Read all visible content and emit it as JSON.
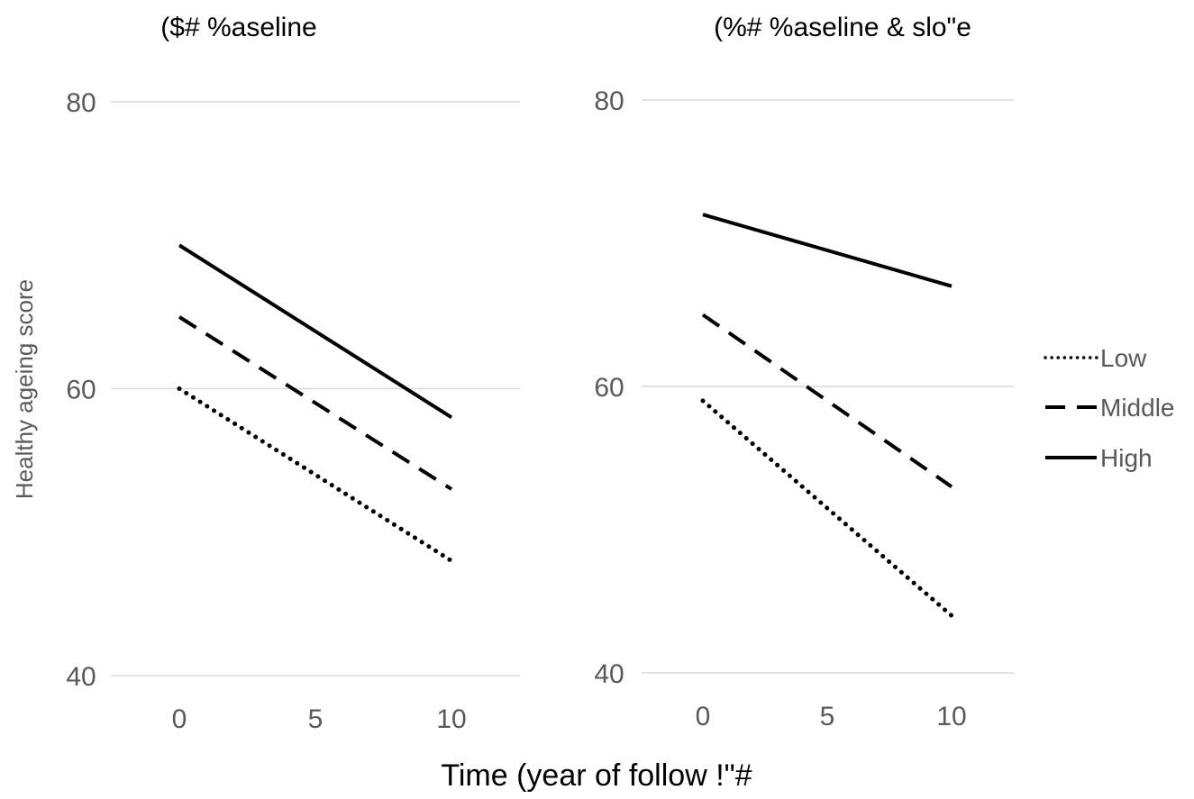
{
  "chart_data": [
    {
      "type": "line",
      "title": "($# %aseline",
      "x": [
        0,
        10
      ],
      "xticks": [
        "0",
        "5",
        "10"
      ],
      "ylim": [
        40,
        80
      ],
      "yticks": [
        "40",
        "60",
        "80"
      ],
      "grid": true,
      "series": [
        {
          "name": "Low",
          "values": [
            60,
            48
          ],
          "style": "dotted"
        },
        {
          "name": "Middle",
          "values": [
            65,
            53
          ],
          "style": "dashed"
        },
        {
          "name": "High",
          "values": [
            70,
            58
          ],
          "style": "solid"
        }
      ]
    },
    {
      "type": "line",
      "title": "(%# %aseline & slo\"e",
      "x": [
        0,
        10
      ],
      "xticks": [
        "0",
        "5",
        "10"
      ],
      "ylim": [
        40,
        80
      ],
      "yticks": [
        "40",
        "60",
        "80"
      ],
      "grid": true,
      "series": [
        {
          "name": "Low",
          "values": [
            59,
            44
          ],
          "style": "dotted"
        },
        {
          "name": "Middle",
          "values": [
            65,
            53
          ],
          "style": "dashed"
        },
        {
          "name": "High",
          "values": [
            72,
            67
          ],
          "style": "solid"
        }
      ]
    }
  ],
  "ylabel": "Healthy ageing score",
  "xlabel": "Time (year of follow !\"#",
  "legend": {
    "position": "right",
    "items": [
      {
        "label": "Low",
        "style": "dotted"
      },
      {
        "label": "Middle",
        "style": "dashed"
      },
      {
        "label": "High",
        "style": "solid"
      }
    ]
  },
  "colors": {
    "line": "#000000",
    "grid": "#d9d9d9",
    "tick": "#595959"
  }
}
